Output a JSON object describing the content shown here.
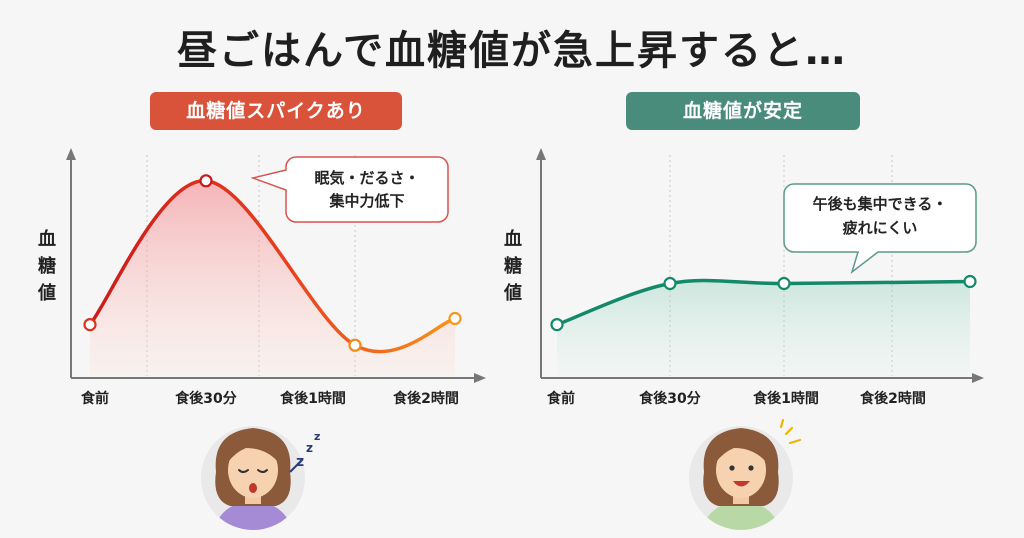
{
  "title": "昼ごはんで血糖値が急上昇すると…",
  "colors": {
    "spike_badge": "#d9533b",
    "stable_badge": "#4a8c7c",
    "spike_line_start": "#cc1a1a",
    "spike_line_end": "#f7951c",
    "stable_line": "#14896a"
  },
  "chart_data": [
    {
      "type": "line",
      "title": "血糖値スパイクあり",
      "ylabel": "血糖値",
      "xlabel": "",
      "categories": [
        "食前",
        "食後30分",
        "食後1時間",
        "食後2時間"
      ],
      "series": [
        {
          "values": [
            25,
            95,
            15,
            28
          ]
        }
      ],
      "ylim": [
        0,
        110
      ],
      "grid": "vertical dotted",
      "annotation": {
        "lines": [
          "眠気・だるさ・",
          "集中力低下"
        ]
      },
      "icons": [
        "tired-woman-icon",
        "zzz-icon"
      ]
    },
    {
      "type": "line",
      "title": "血糖値が安定",
      "ylabel": "血糖値",
      "xlabel": "",
      "categories": [
        "食前",
        "食後30分",
        "食後1時間",
        "食後2時間"
      ],
      "series": [
        {
          "values": [
            25,
            45,
            45,
            46
          ]
        }
      ],
      "ylim": [
        0,
        110
      ],
      "grid": "vertical dotted",
      "annotation": {
        "lines": [
          "午後も集中できる・",
          "疲れにくい"
        ]
      },
      "icons": [
        "happy-woman-icon",
        "sparkle-icon"
      ]
    }
  ]
}
